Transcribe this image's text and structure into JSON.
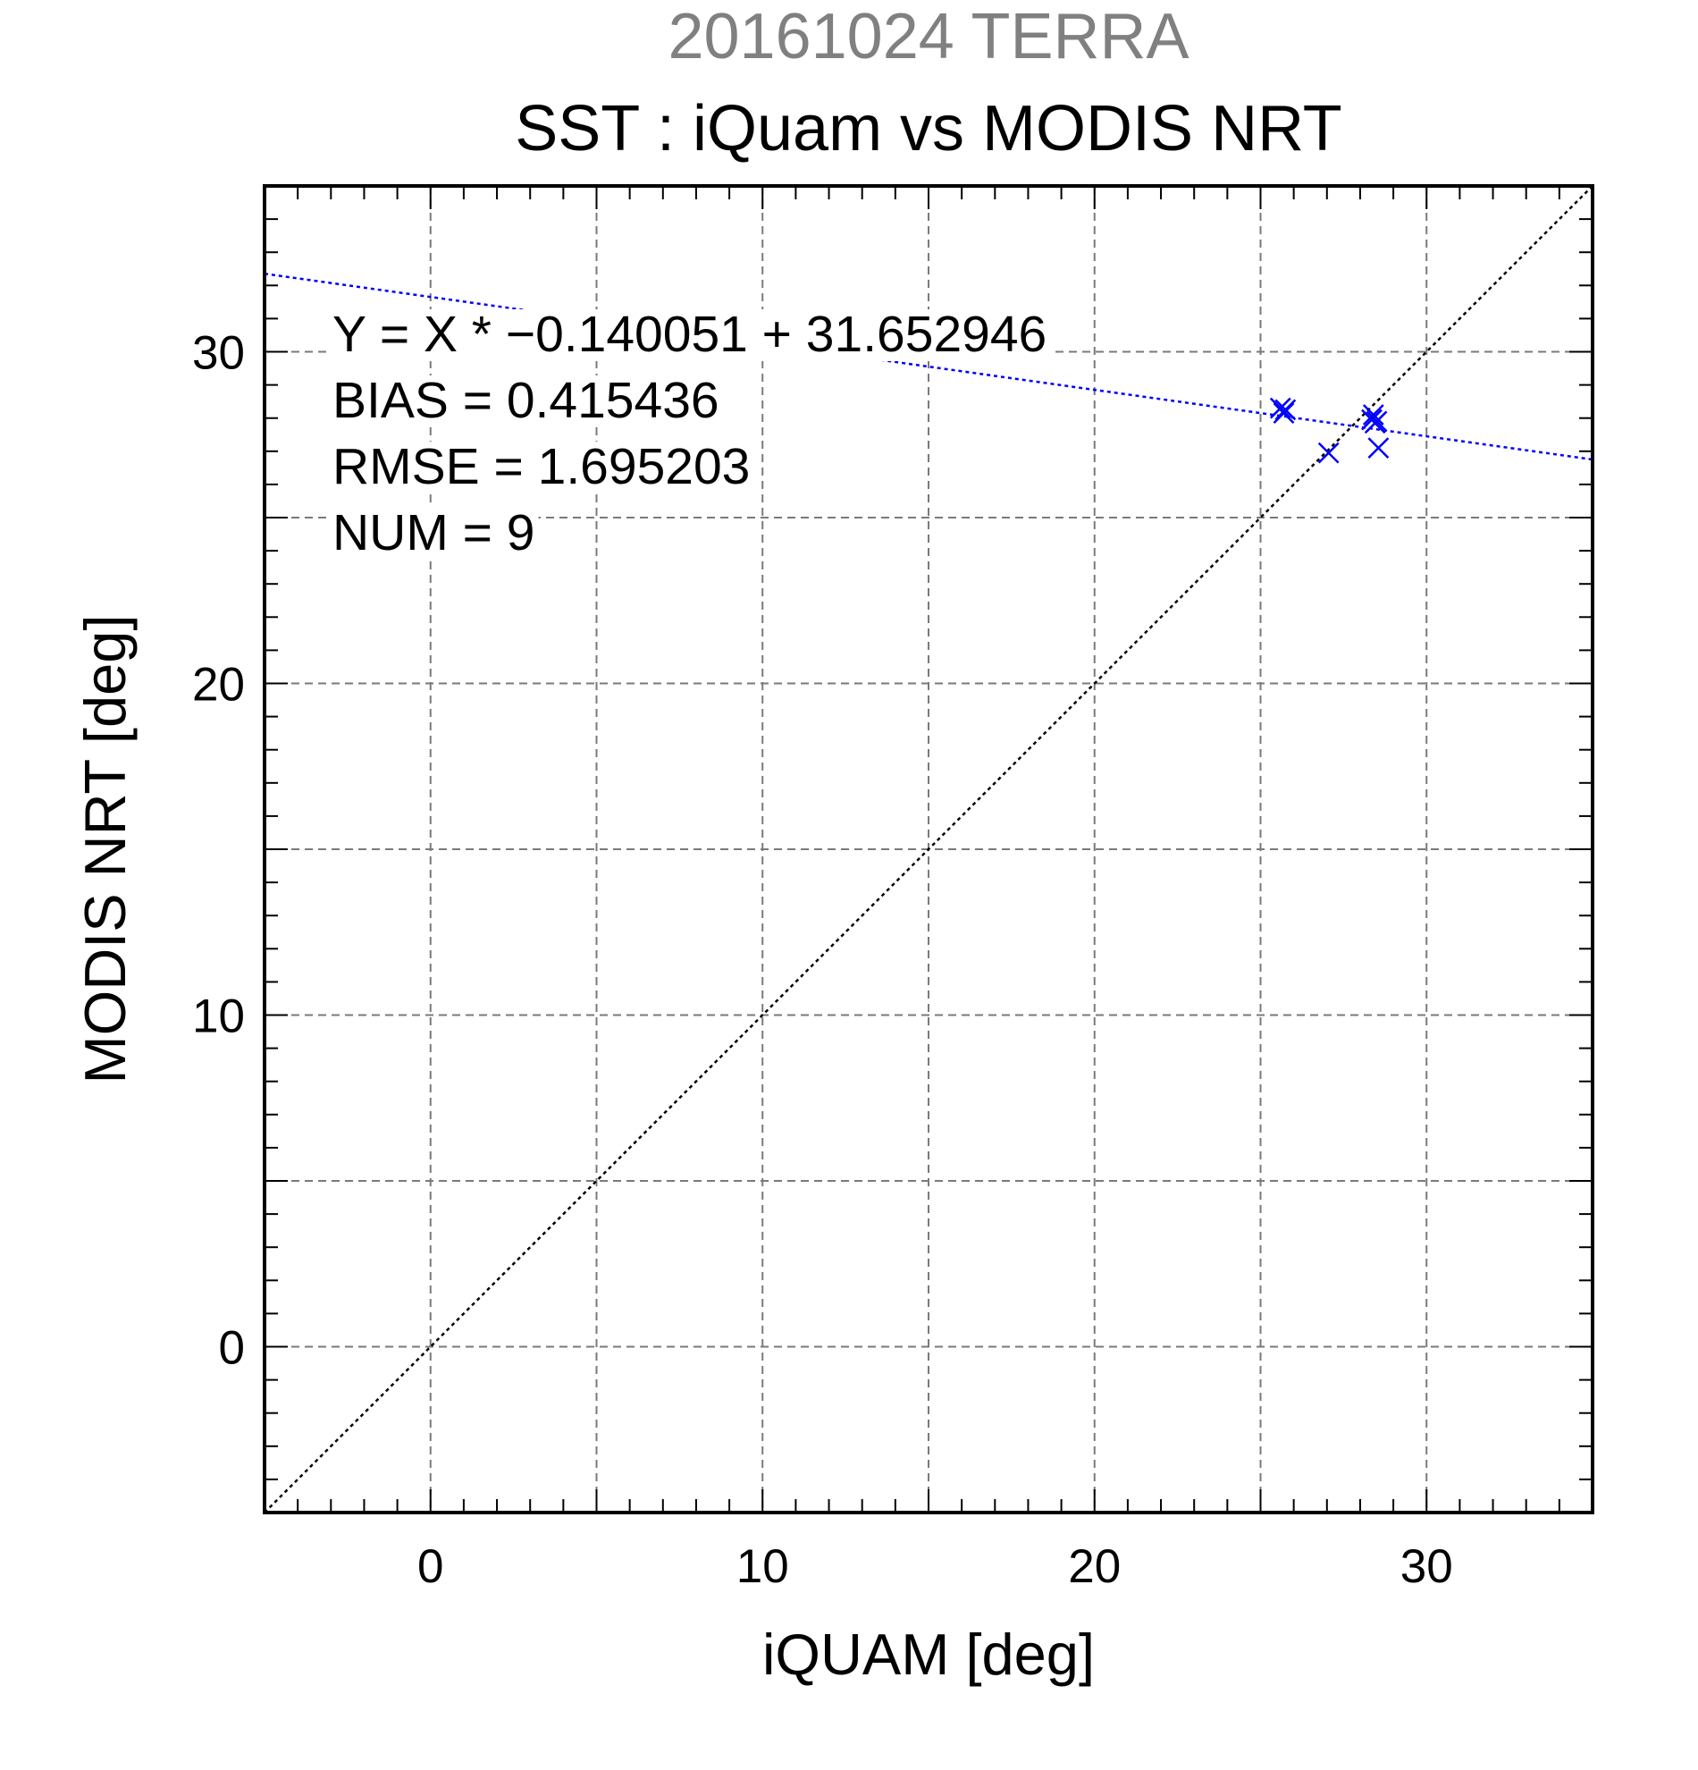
{
  "chart_data": {
    "type": "scatter",
    "supertitle": "20161024 TERRA",
    "title": "SST : iQuam vs MODIS NRT",
    "xlabel": "iQUAM [deg]",
    "ylabel": "MODIS NRT [deg]",
    "xlim": [
      -5,
      35
    ],
    "ylim": [
      -5,
      35
    ],
    "xticks": [
      0,
      10,
      20,
      30
    ],
    "yticks": [
      0,
      10,
      20,
      30
    ],
    "xtick_labels": [
      "0",
      "10",
      "20",
      "30"
    ],
    "ytick_labels": [
      "0",
      "10",
      "20",
      "30"
    ],
    "grid": true,
    "grid_step": 5,
    "minor_tick_step": 1,
    "stats": {
      "equation": "Y = X * −0.140051 + 31.652946",
      "bias": "BIAS = 0.415436",
      "rmse": "RMSE = 1.695203",
      "num": "NUM = 9"
    },
    "fit": {
      "slope": -0.140051,
      "intercept": 31.652946,
      "color": "#0000ff",
      "style": "dotted"
    },
    "identity_line": {
      "color": "#000000",
      "style": "dotted"
    },
    "series": [
      {
        "marker": "x",
        "color": "#0000ff",
        "points": [
          [
            25.6,
            28.3
          ],
          [
            25.7,
            28.15
          ],
          [
            25.75,
            28.25
          ],
          [
            27.05,
            26.95
          ],
          [
            28.35,
            27.95
          ],
          [
            28.4,
            28.1
          ],
          [
            28.5,
            27.9
          ],
          [
            28.45,
            27.85
          ],
          [
            28.55,
            27.1
          ]
        ]
      }
    ]
  }
}
